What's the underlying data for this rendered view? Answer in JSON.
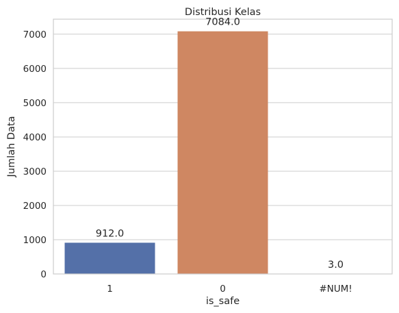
{
  "chart_data": {
    "type": "bar",
    "title": "Distribusi Kelas",
    "xlabel": "is_safe",
    "ylabel": "Jumlah Data",
    "categories": [
      "1",
      "0",
      "#NUM!"
    ],
    "values": [
      912.0,
      7084.0,
      3.0
    ],
    "data_labels": [
      "912.0",
      "7084.0",
      "3.0"
    ],
    "colors": [
      "#5470a8",
      "#cf8762",
      "#5b9c6b"
    ],
    "ylim": [
      0,
      7438
    ],
    "yticks": [
      0,
      1000,
      2000,
      3000,
      4000,
      5000,
      6000,
      7000
    ],
    "grid": true,
    "grid_color": "#cccccc",
    "frame_color": "#cccccc"
  }
}
